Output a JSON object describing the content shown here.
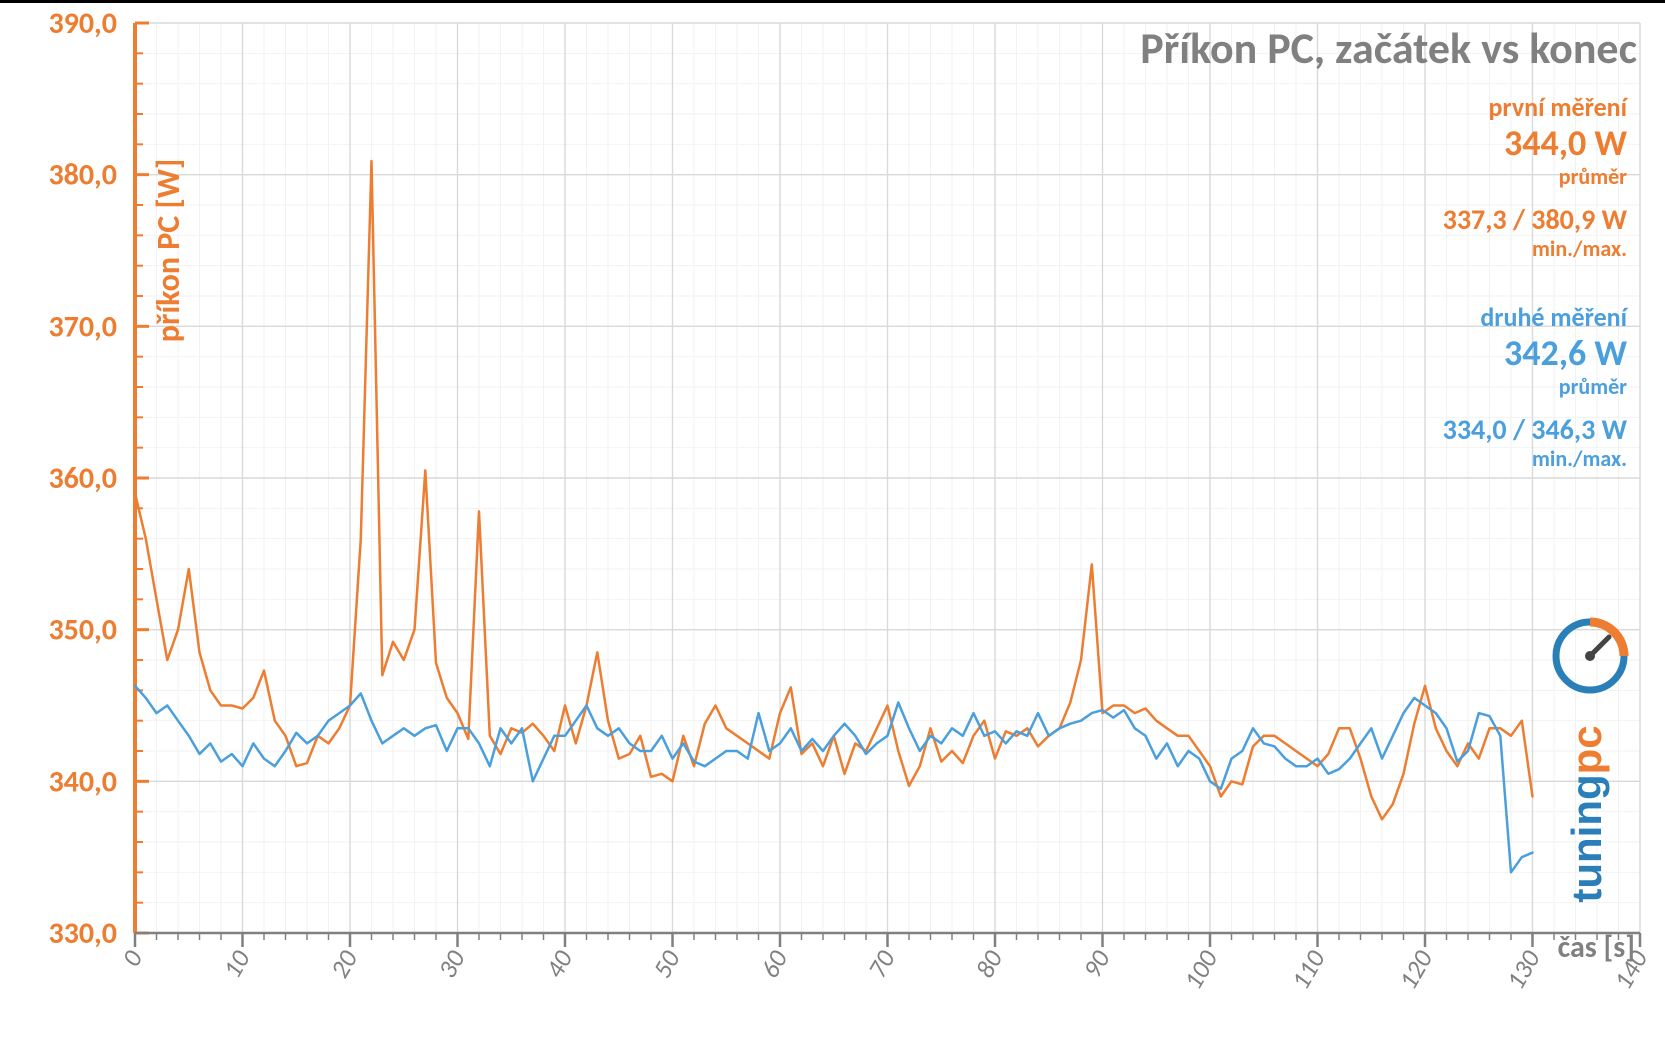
{
  "chart": {
    "type": "line",
    "title": "Příkon PC, začátek vs konec",
    "title_color": "#808080",
    "title_fontsize": 44,
    "x_axis": {
      "label": "čas [s]",
      "label_color": "#808080",
      "label_fontsize": 30,
      "min": 0,
      "max": 140,
      "tick_step": 10,
      "tick_color_major": "#808080",
      "tick_fontsize": 26,
      "grid_minor_step": 2
    },
    "y_axis": {
      "label": "příkon PC [W]",
      "label_color": "#ed7d31",
      "label_fontsize": 32,
      "min": 330,
      "max": 390,
      "tick_step": 10,
      "tick_color": "#ed7d31",
      "tick_fontsize": 30,
      "axis_line_color": "#ed7d31",
      "axis_line_width": 4,
      "grid_minor_step": 2
    },
    "grid_color": "#d9d9d9",
    "grid_minor_color": "#f2f2f2",
    "background_color": "#ffffff",
    "series": [
      {
        "name": "první měření",
        "color": "#ed7d31",
        "line_width": 2.5,
        "stats": {
          "avg": "344,0 W",
          "avg_label": "průměr",
          "minmax": "337,3 / 380,9 W",
          "minmax_label": "min./max."
        },
        "x": [
          0,
          1,
          2,
          3,
          4,
          5,
          6,
          7,
          8,
          9,
          10,
          11,
          12,
          13,
          14,
          15,
          16,
          17,
          18,
          19,
          20,
          21,
          22,
          23,
          24,
          25,
          26,
          27,
          28,
          29,
          30,
          31,
          32,
          33,
          34,
          35,
          36,
          37,
          38,
          39,
          40,
          41,
          42,
          43,
          44,
          45,
          46,
          47,
          48,
          49,
          50,
          51,
          52,
          53,
          54,
          55,
          56,
          57,
          58,
          59,
          60,
          61,
          62,
          63,
          64,
          65,
          66,
          67,
          68,
          69,
          70,
          71,
          72,
          73,
          74,
          75,
          76,
          77,
          78,
          79,
          80,
          81,
          82,
          83,
          84,
          85,
          86,
          87,
          88,
          89,
          90,
          91,
          92,
          93,
          94,
          95,
          96,
          97,
          98,
          99,
          100,
          101,
          102,
          103,
          104,
          105,
          106,
          107,
          108,
          109,
          110,
          111,
          112,
          113,
          114,
          115,
          116,
          117,
          118,
          119,
          120,
          121,
          122,
          123,
          124,
          125,
          126,
          127,
          128,
          129,
          130
        ],
        "y": [
          359.0,
          356.0,
          352.0,
          348.0,
          350.0,
          354.0,
          348.5,
          346.0,
          345.0,
          345.0,
          344.8,
          345.5,
          347.3,
          344.0,
          343.0,
          341.0,
          341.2,
          343.0,
          342.5,
          343.5,
          345.0,
          356.0,
          380.9,
          347.0,
          349.2,
          348.0,
          350.0,
          360.5,
          347.8,
          345.5,
          344.5,
          342.8,
          357.8,
          343.0,
          341.8,
          343.5,
          343.2,
          343.8,
          343.0,
          342.0,
          345.0,
          342.5,
          345.0,
          348.5,
          344.0,
          341.5,
          341.8,
          343.0,
          340.3,
          340.5,
          340.0,
          343.0,
          341.0,
          343.8,
          345.0,
          343.5,
          343.0,
          342.5,
          342.0,
          341.5,
          344.5,
          346.2,
          341.8,
          342.5,
          341.0,
          343.0,
          340.5,
          342.5,
          342.0,
          343.5,
          345.0,
          342.0,
          339.7,
          341.0,
          343.5,
          341.3,
          342.0,
          341.2,
          343.0,
          344.0,
          341.5,
          343.3,
          343.0,
          343.5,
          342.3,
          343.0,
          343.5,
          345.2,
          348.0,
          354.3,
          344.5,
          345.0,
          345.0,
          344.5,
          344.8,
          344.0,
          343.5,
          343.0,
          343.0,
          342.0,
          341.0,
          339.0,
          340.0,
          339.8,
          342.3,
          343.0,
          343.0,
          342.5,
          342.0,
          341.5,
          341.0,
          341.8,
          343.5,
          343.5,
          341.5,
          339.0,
          337.5,
          338.5,
          340.5,
          343.8,
          346.3,
          343.5,
          342.0,
          341.0,
          342.5,
          341.5,
          343.5,
          343.5,
          343.0,
          344.0,
          339.0
        ]
      },
      {
        "name": "druhé měření",
        "color": "#4a9fdc",
        "line_width": 2.5,
        "stats": {
          "avg": "342,6 W",
          "avg_label": "průměr",
          "minmax": "334,0 / 346,3 W",
          "minmax_label": "min./max."
        },
        "x": [
          0,
          1,
          2,
          3,
          4,
          5,
          6,
          7,
          8,
          9,
          10,
          11,
          12,
          13,
          14,
          15,
          16,
          17,
          18,
          19,
          20,
          21,
          22,
          23,
          24,
          25,
          26,
          27,
          28,
          29,
          30,
          31,
          32,
          33,
          34,
          35,
          36,
          37,
          38,
          39,
          40,
          41,
          42,
          43,
          44,
          45,
          46,
          47,
          48,
          49,
          50,
          51,
          52,
          53,
          54,
          55,
          56,
          57,
          58,
          59,
          60,
          61,
          62,
          63,
          64,
          65,
          66,
          67,
          68,
          69,
          70,
          71,
          72,
          73,
          74,
          75,
          76,
          77,
          78,
          79,
          80,
          81,
          82,
          83,
          84,
          85,
          86,
          87,
          88,
          89,
          90,
          91,
          92,
          93,
          94,
          95,
          96,
          97,
          98,
          99,
          100,
          101,
          102,
          103,
          104,
          105,
          106,
          107,
          108,
          109,
          110,
          111,
          112,
          113,
          114,
          115,
          116,
          117,
          118,
          119,
          120,
          121,
          122,
          123,
          124,
          125,
          126,
          127,
          128,
          129,
          130
        ],
        "y": [
          346.3,
          345.5,
          344.5,
          345.0,
          344.0,
          343.0,
          341.8,
          342.5,
          341.3,
          341.8,
          341.0,
          342.5,
          341.5,
          341.0,
          342.0,
          343.2,
          342.5,
          343.0,
          344.0,
          344.5,
          345.0,
          345.8,
          344.0,
          342.5,
          343.0,
          343.5,
          343.0,
          343.5,
          343.7,
          342.0,
          343.5,
          343.5,
          342.5,
          341.0,
          343.5,
          342.5,
          343.5,
          340.0,
          341.5,
          343.0,
          343.0,
          344.0,
          345.0,
          343.5,
          343.0,
          343.5,
          342.5,
          342.0,
          342.0,
          343.0,
          341.5,
          342.5,
          341.3,
          341.0,
          341.5,
          342.0,
          342.0,
          341.5,
          344.5,
          342.0,
          342.5,
          343.5,
          342.0,
          342.8,
          342.0,
          343.0,
          343.8,
          343.0,
          341.8,
          342.5,
          343.0,
          345.2,
          343.5,
          342.0,
          343.0,
          342.5,
          343.5,
          343.0,
          344.5,
          343.0,
          343.3,
          342.5,
          343.3,
          343.0,
          344.5,
          343.0,
          343.5,
          343.8,
          344.0,
          344.5,
          344.7,
          344.2,
          344.7,
          343.5,
          343.0,
          341.5,
          342.5,
          341.0,
          342.0,
          341.5,
          340.0,
          339.5,
          341.5,
          342.0,
          343.5,
          342.5,
          342.3,
          341.5,
          341.0,
          341.0,
          341.5,
          340.5,
          340.8,
          341.5,
          342.5,
          343.5,
          341.5,
          343.0,
          344.5,
          345.5,
          345.0,
          344.5,
          343.5,
          341.3,
          342.0,
          344.5,
          344.3,
          343.0,
          334.0,
          335.0,
          335.3
        ]
      }
    ],
    "stats_fontsize_label": 26,
    "stats_fontsize_big": 36,
    "stats_fontsize_small": 22
  },
  "logo": {
    "text_pc": "pc",
    "text_tuning": "tuning",
    "color_pc": "#ed7d31",
    "color_tuning": "#2a7fb8",
    "fontsize": 42
  }
}
